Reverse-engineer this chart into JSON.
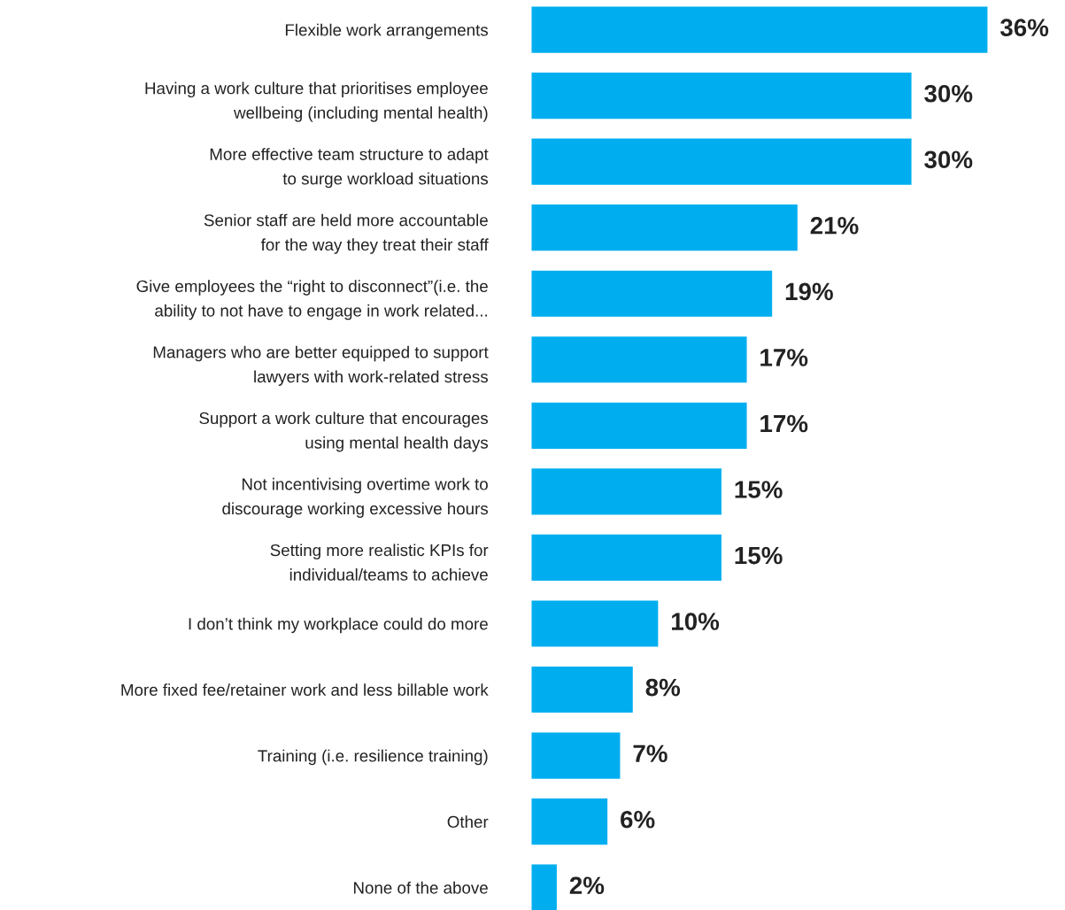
{
  "chart_data": {
    "type": "bar",
    "orientation": "horizontal",
    "categories": [
      "Flexible work arrangements",
      "Having a work culture that prioritises employee\nwellbeing (including mental health)",
      "More effective team structure to adapt\nto surge workload situations",
      "Senior staff are held more accountable\nfor the way they treat their staff",
      "Give employees the “right to disconnect”(i.e. the\nability to not have to engage in work related...",
      "Managers who are better equipped to support\nlawyers with work-related stress",
      "Support a work culture that encourages\nusing mental health days",
      "Not incentivising overtime work to\ndiscourage working excessive hours",
      "Setting more realistic KPIs for\nindividual/teams to achieve",
      "I don’t think my workplace could do more",
      "More fixed fee/retainer work and less billable work",
      "Training (i.e. resilience training)",
      "Other",
      "None of the above"
    ],
    "values": [
      36,
      30,
      30,
      21,
      19,
      17,
      17,
      15,
      15,
      10,
      8,
      7,
      6,
      2
    ],
    "value_labels": [
      "36%",
      "30%",
      "30%",
      "21%",
      "19%",
      "17%",
      "17%",
      "15%",
      "15%",
      "10%",
      "8%",
      "7%",
      "6%",
      "2%"
    ],
    "color": "#00aeef",
    "grid": false,
    "legend": false
  }
}
